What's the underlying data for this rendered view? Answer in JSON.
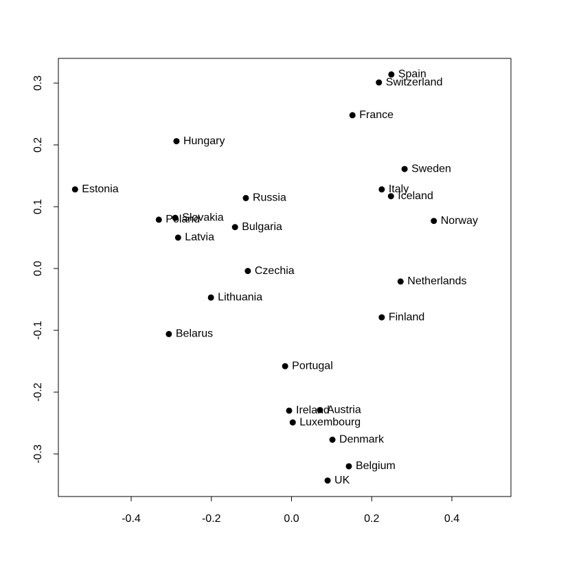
{
  "chart_data": {
    "type": "scatter",
    "labels": [
      "Spain",
      "Switzerland",
      "France",
      "Hungary",
      "Sweden",
      "Estonia",
      "Italy",
      "Iceland",
      "Russia",
      "Slovakia",
      "Poland",
      "Norway",
      "Bulgaria",
      "Latvia",
      "Czechia",
      "Netherlands",
      "Lithuania",
      "Finland",
      "Belarus",
      "Portugal",
      "Ireland",
      "Austria",
      "Luxembourg",
      "Denmark",
      "Belgium",
      "UK"
    ],
    "x": [
      0.249,
      0.218,
      0.152,
      -0.287,
      0.282,
      -0.54,
      0.225,
      0.248,
      -0.114,
      -0.29,
      -0.331,
      0.355,
      -0.141,
      -0.283,
      -0.109,
      0.272,
      -0.201,
      0.225,
      -0.306,
      -0.016,
      -0.006,
      0.071,
      0.003,
      0.102,
      0.143,
      0.09
    ],
    "values": [
      0.314,
      0.301,
      0.248,
      0.206,
      0.161,
      0.128,
      0.128,
      0.117,
      0.114,
      0.082,
      0.079,
      0.077,
      0.067,
      0.05,
      -0.004,
      -0.021,
      -0.047,
      -0.079,
      -0.106,
      -0.158,
      -0.23,
      -0.229,
      -0.249,
      -0.277,
      -0.32,
      -0.343
    ],
    "color": "#000000",
    "xlim": [
      -0.5816,
      0.5473
    ],
    "ylim": [
      -0.3689,
      0.34
    ],
    "xticks": [
      -0.4,
      -0.2,
      {
        "value": 0,
        "label": "0.0"
      },
      0.2,
      0.4
    ],
    "yticks": [
      -0.3,
      -0.2,
      -0.1,
      {
        "value": 0,
        "label": "0.0"
      },
      0.1,
      0.2,
      0.3
    ]
  }
}
